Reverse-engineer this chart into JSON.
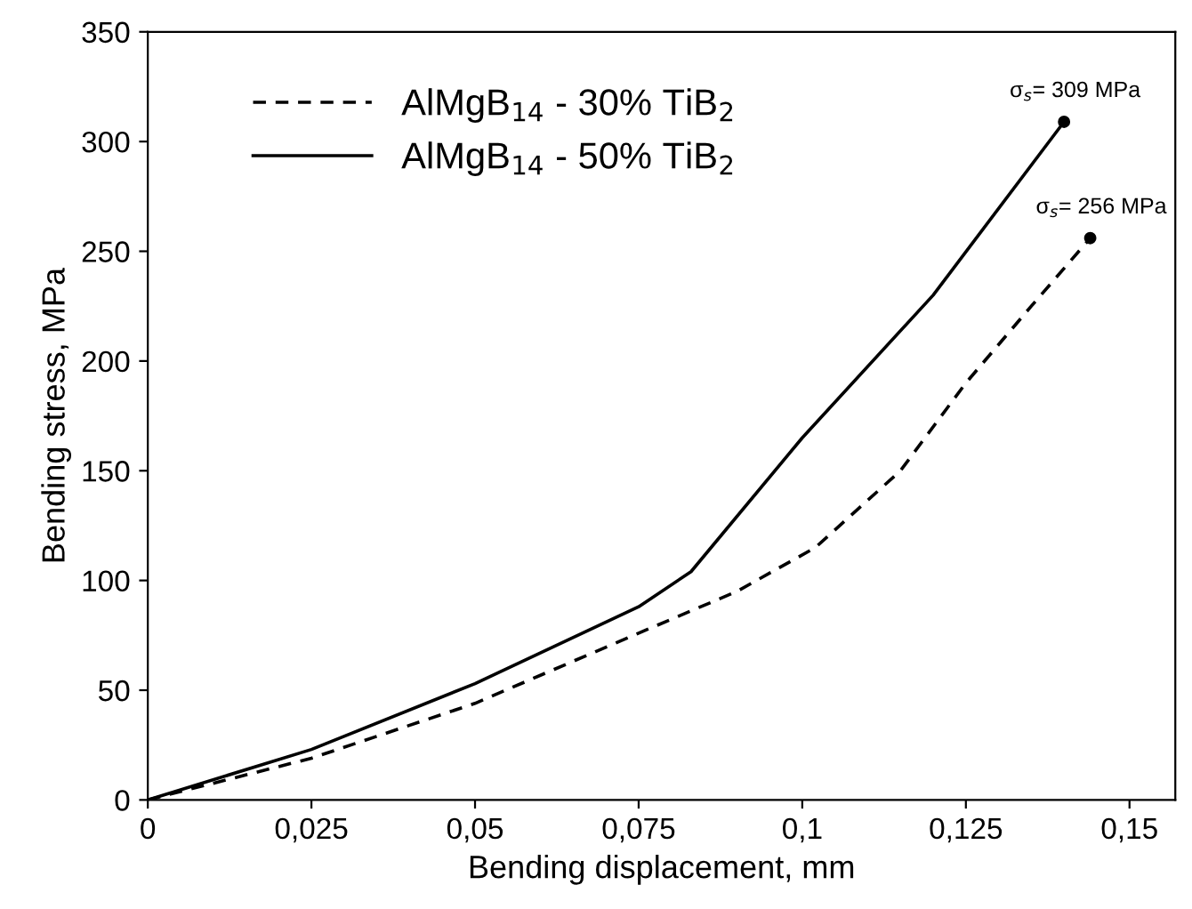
{
  "chart_data": {
    "type": "line",
    "xlabel": "Bending displacement, mm",
    "ylabel": "Bending stress, MPa",
    "xlim": [
      0,
      0.157
    ],
    "xticks": [
      {
        "value": 0,
        "label": "0"
      },
      {
        "value": 0.025,
        "label": "0,025"
      },
      {
        "value": 0.05,
        "label": "0,05"
      },
      {
        "value": 0.075,
        "label": "0,075"
      },
      {
        "value": 0.1,
        "label": "0,1"
      },
      {
        "value": 0.125,
        "label": "0,125"
      },
      {
        "value": 0.15,
        "label": "0,15"
      }
    ],
    "ylim": [
      0,
      350
    ],
    "yticks": [
      0,
      50,
      100,
      150,
      200,
      250,
      300,
      350
    ],
    "grid": false,
    "legend": "top left",
    "marker": "none",
    "series": [
      {
        "name": "AlMgB$_{14}$ - 30% TiB$_{2}$",
        "color": "#000000",
        "line_style": "dashed",
        "x": [
          0,
          0.025,
          0.05,
          0.075,
          0.09,
          0.102,
          0.115,
          0.125,
          0.135,
          0.144
        ],
        "values": [
          0,
          19,
          44,
          76,
          95,
          115,
          150,
          190,
          225,
          256
        ]
      },
      {
        "name": "AlMgB$_{14}$ - 50% TiB$_{2}$",
        "color": "#000000",
        "line_style": "solid",
        "x": [
          0,
          0.025,
          0.05,
          0.075,
          0.083,
          0.1,
          0.12,
          0.14
        ],
        "values": [
          0,
          23,
          53,
          88,
          104,
          165,
          230,
          309
        ]
      }
    ],
    "annotations": [
      {
        "text": "σ$_{s}$= 309 MPa",
        "x": 0.14,
        "y": 309
      },
      {
        "text": "σ$_{s}$= 256 MPa",
        "x": 0.144,
        "y": 256
      }
    ]
  }
}
